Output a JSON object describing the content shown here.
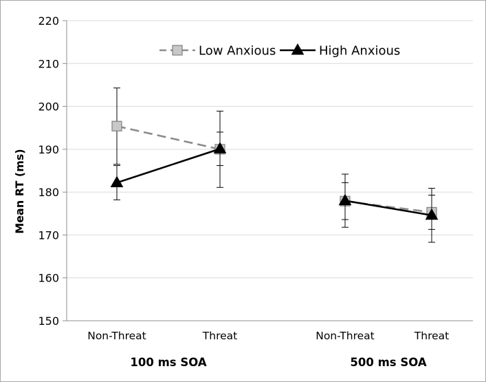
{
  "chart_data": {
    "type": "line",
    "title": "",
    "ylabel": "Mean RT (ms)",
    "ylim": [
      150,
      220
    ],
    "yticks": [
      150,
      160,
      170,
      180,
      190,
      200,
      210,
      220
    ],
    "grid": true,
    "legend_position": "top",
    "groups": [
      {
        "label": "100 ms SOA",
        "categories": [
          "Non-Threat",
          "Threat"
        ]
      },
      {
        "label": "500 ms SOA",
        "categories": [
          "Non-Threat",
          "Threat"
        ]
      }
    ],
    "series": [
      {
        "name": "Low Anxious",
        "marker": "square",
        "line_style": "dashed",
        "line_color": "#8c8c8c",
        "marker_fill": "#c8c8c8",
        "values": [
          195.4,
          190.0,
          177.9,
          175.3
        ],
        "error": [
          8.9,
          8.9,
          4.3,
          4.0
        ]
      },
      {
        "name": "High Anxious",
        "marker": "triangle",
        "line_style": "solid",
        "line_color": "#000000",
        "marker_fill": "#000000",
        "values": [
          182.2,
          190.1,
          178.0,
          174.6
        ],
        "error": [
          4.0,
          3.9,
          6.2,
          6.3
        ]
      }
    ]
  }
}
